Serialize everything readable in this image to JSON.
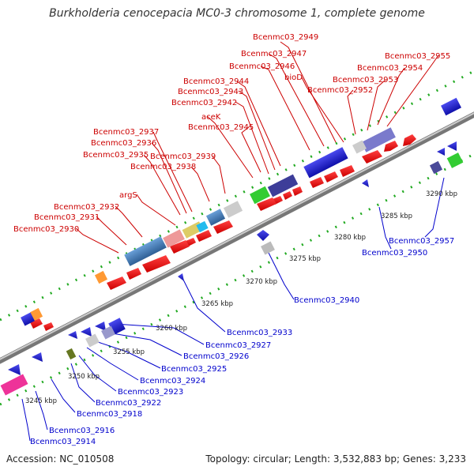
{
  "title": "Burkholderia cenocepacia MC0-3 chromosome 1, complete genome",
  "footer": {
    "accession": "Accession: NC_010508",
    "summary": "Topology: circular; Length: 3,532,883 bp; Genes: 3,233"
  },
  "genes_top": [
    "Bcenmc03_2949",
    "Bcenmc03_2947",
    "Bcenmc03_2946",
    "bioD",
    "Bcenmc03_2955",
    "Bcenmc03_2954",
    "Bcenmc03_2953",
    "Bcenmc03_2952",
    "Bcenmc03_2944",
    "Bcenmc03_2943",
    "Bcenmc03_2942",
    "aceK",
    "Bcenmc03_2945",
    "Bcenmc03_2937",
    "Bcenmc03_2936",
    "Bcenmc03_2935",
    "Bcenmc03_2939",
    "Bcenmc03_2938",
    "argS",
    "Bcenmc03_2932",
    "Bcenmc03_2931",
    "Bcenmc03_2930"
  ],
  "genes_bottom": [
    "Bcenmc03_2957",
    "Bcenmc03_2950",
    "Bcenmc03_2940",
    "Bcenmc03_2933",
    "Bcenmc03_2927",
    "Bcenmc03_2926",
    "Bcenmc03_2925",
    "Bcenmc03_2924",
    "Bcenmc03_2923",
    "Bcenmc03_2922",
    "Bcenmc03_2918",
    "Bcenmc03_2916",
    "Bcenmc03_2914"
  ],
  "ticks": [
    "3290 kbp",
    "3285 kbp",
    "3280 kbp",
    "3275 kbp",
    "3270 kbp",
    "3265 kbp",
    "3260 kbp",
    "3255 kbp",
    "3250 kbp",
    "3245 kbp"
  ],
  "colors": {
    "forward_gene": "#ee0000",
    "reverse_gene": "#1a1acc",
    "rna_cds_block": "#4a7fb5",
    "label_forward": "#cc0000",
    "label_reverse": "#0000cc",
    "backbone": "#888888",
    "tick": "#22aa22"
  }
}
